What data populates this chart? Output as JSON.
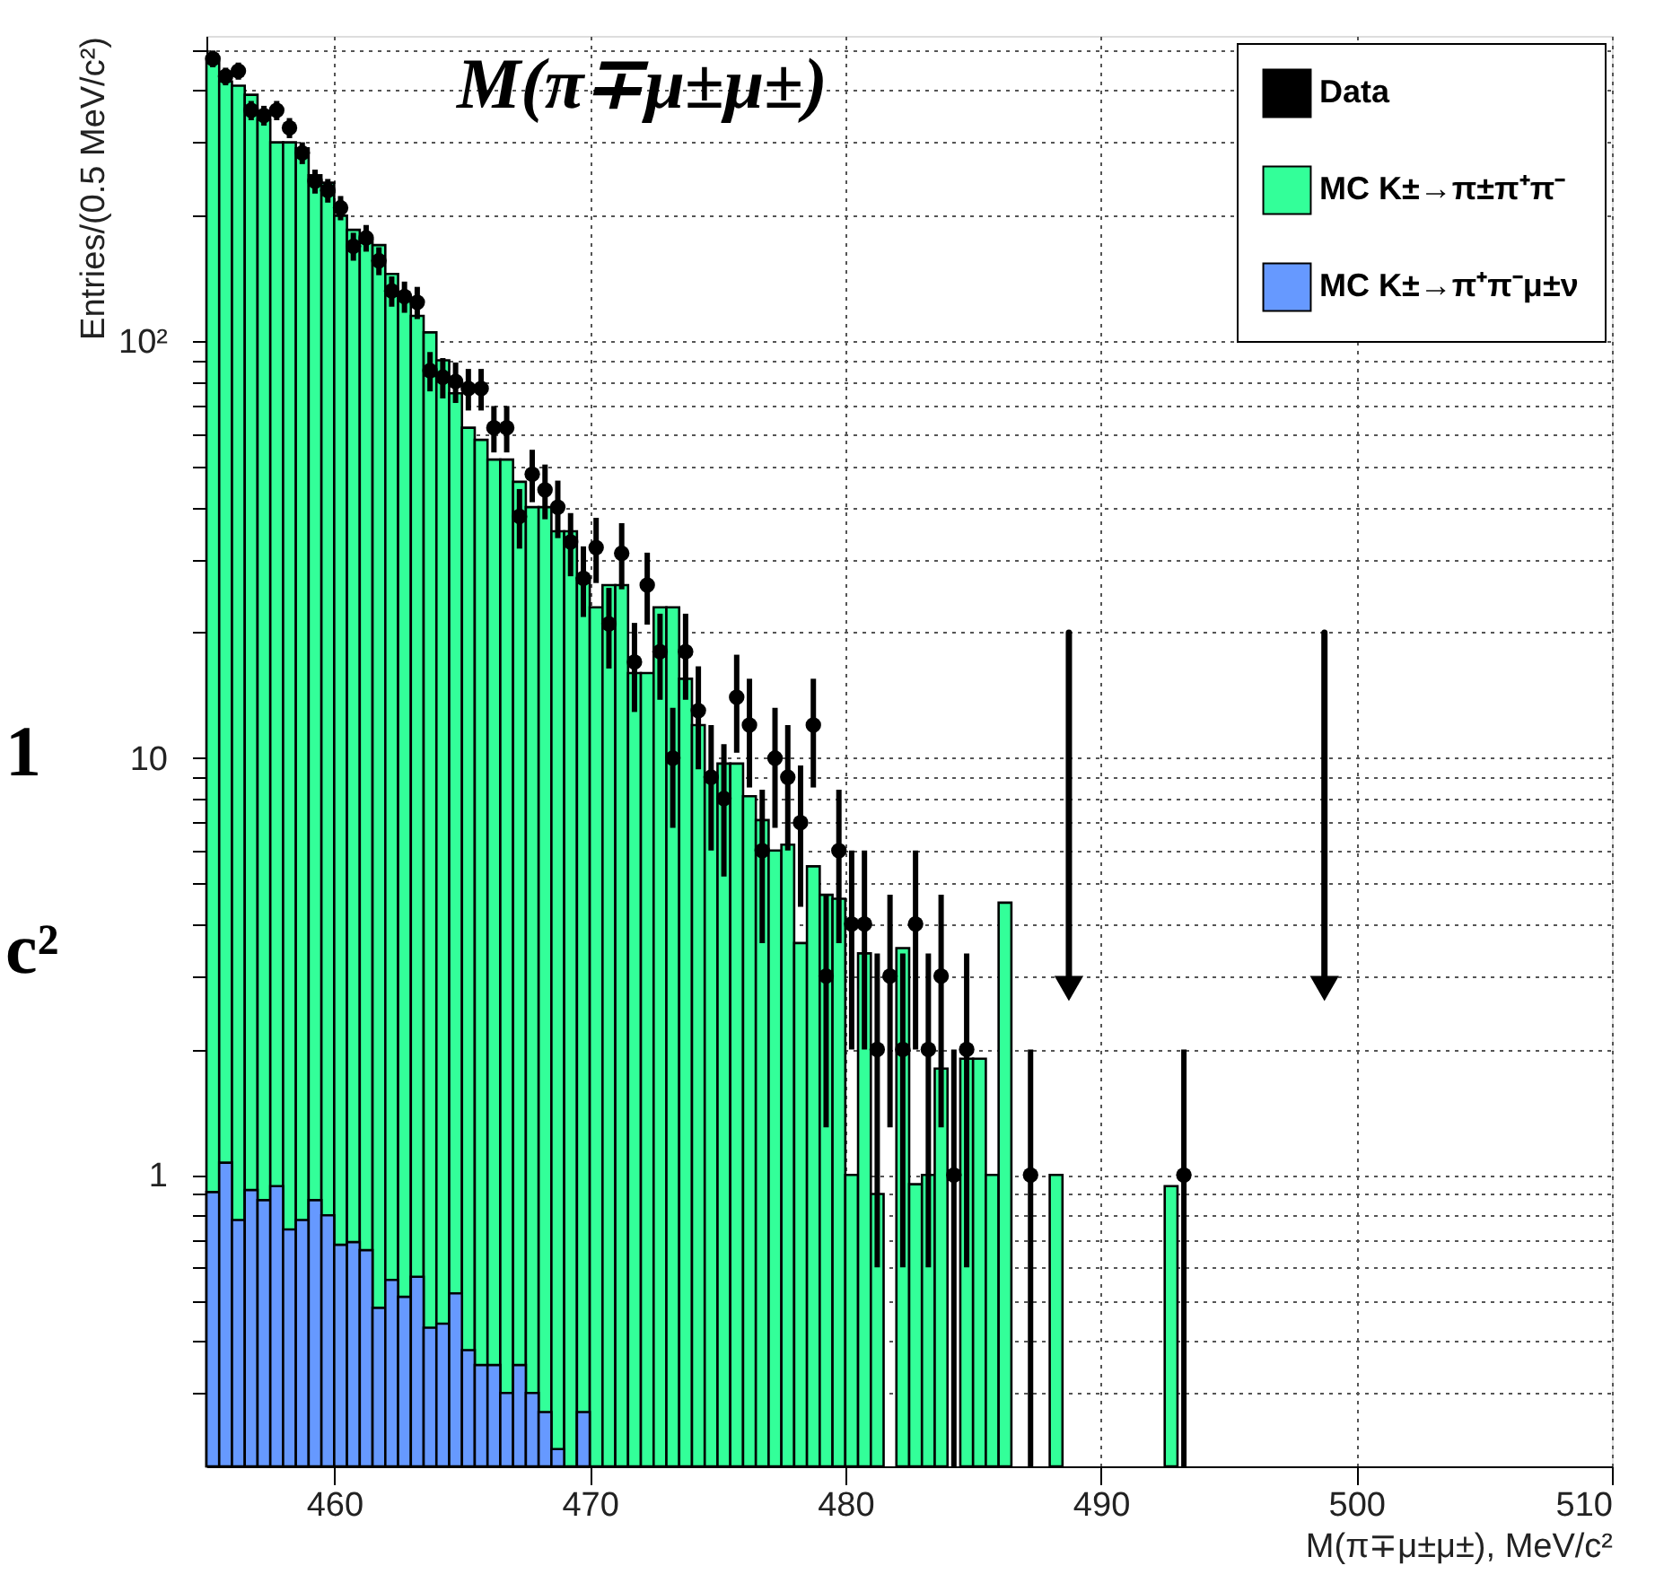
{
  "chart_data": {
    "type": "histogram",
    "title": "M(π∓μ±μ±)",
    "xlabel": "M(π∓μ±μ±), MeV/c²",
    "ylabel": "Entries/(0.5 MeV/c²)",
    "annotations": [
      "1",
      "c²"
    ],
    "xlim": [
      455,
      510
    ],
    "xticks": [
      460,
      470,
      480,
      490,
      500,
      510
    ],
    "ylim": [
      0.2,
      540
    ],
    "log": "y",
    "yticks": [
      {
        "value": 0.3,
        "label": null
      },
      {
        "value": 0.4,
        "label": null
      },
      {
        "value": 0.5,
        "label": null
      },
      {
        "value": 0.6,
        "label": null
      },
      {
        "value": 0.7,
        "label": null
      },
      {
        "value": 0.8,
        "label": null
      },
      {
        "value": 0.9,
        "label": null
      },
      1,
      {
        "value": 2,
        "label": null
      },
      {
        "value": 3,
        "label": null
      },
      {
        "value": 4,
        "label": null
      },
      {
        "value": 5,
        "label": null
      },
      {
        "value": 6,
        "label": null
      },
      {
        "value": 7,
        "label": null
      },
      {
        "value": 8,
        "label": null
      },
      {
        "value": 9,
        "label": null
      },
      10,
      {
        "value": 20,
        "label": null
      },
      {
        "value": 30,
        "label": null
      },
      {
        "value": 40,
        "label": null
      },
      {
        "value": 50,
        "label": null
      },
      {
        "value": 60,
        "label": null
      },
      {
        "value": 70,
        "label": null
      },
      {
        "value": 80,
        "label": null
      },
      {
        "value": 90,
        "label": null
      },
      {
        "value": 100,
        "label": "10²"
      },
      {
        "value": 200,
        "label": null
      },
      {
        "value": 300,
        "label": null
      },
      {
        "value": 400,
        "label": null
      },
      {
        "value": 500,
        "label": null
      }
    ],
    "grid": true,
    "legend": "top right",
    "bins": [
      455,
      455.5,
      456,
      456.5,
      457,
      457.5,
      458,
      458.5,
      459,
      459.5,
      460,
      460.5,
      461,
      461.5,
      462,
      462.5,
      463,
      463.5,
      464,
      464.5,
      465,
      465.5,
      466,
      466.5,
      467,
      467.5,
      468,
      468.5,
      469,
      469.5,
      470,
      470.5,
      471,
      471.5,
      472,
      472.5,
      473,
      473.5,
      474,
      474.5,
      475,
      475.5,
      476,
      476.5,
      477,
      477.5,
      478,
      478.5,
      479,
      479.5,
      480,
      480.5,
      481,
      481.5,
      482,
      482.5,
      483,
      483.5,
      484,
      484.5,
      485,
      485.5,
      486,
      486.5,
      487,
      487.5,
      488,
      488.5,
      489,
      489.5,
      490,
      490.5,
      491,
      491.5,
      492,
      492.5,
      493,
      493.5,
      494,
      494.5,
      495,
      495.5,
      496,
      496.5,
      497,
      497.5,
      498,
      498.5,
      499,
      499.5,
      500,
      500.5,
      501,
      501.5,
      502,
      502.5,
      503,
      503.5,
      504,
      504.5,
      505,
      505.5,
      506,
      506.5,
      507,
      507.5,
      508,
      508.5,
      509,
      509.5,
      510
    ],
    "series": [
      {
        "name": "Data",
        "type": "scatter",
        "color": "#000000",
        "marker": "circle",
        "x": [
          455.25,
          455.75,
          456.25,
          456.75,
          457.25,
          457.75,
          458.25,
          458.75,
          459.25,
          459.75,
          460.25,
          460.75,
          461.25,
          461.75,
          462.25,
          462.75,
          463.25,
          463.75,
          464.25,
          464.75,
          465.25,
          465.75,
          466.25,
          466.75,
          467.25,
          467.75,
          468.25,
          468.75,
          469.25,
          469.75,
          470.25,
          470.75,
          471.25,
          471.75,
          472.25,
          472.75,
          473.25,
          473.75,
          474.25,
          474.75,
          475.25,
          475.75,
          476.25,
          476.75,
          477.25,
          477.75,
          478.25,
          478.75,
          479.25,
          479.75,
          480.25,
          480.75,
          481.25,
          481.75,
          482.25,
          482.75,
          483.25,
          483.75,
          484.25,
          484.75,
          487.25,
          493.25
        ],
        "values": [
          476,
          432,
          445,
          358,
          348,
          358,
          325,
          283,
          242,
          230,
          209,
          169,
          177,
          156,
          132,
          128,
          124,
          85,
          82,
          80,
          77,
          77,
          62,
          62,
          38,
          48,
          44,
          40,
          33,
          27,
          32,
          21,
          31,
          17,
          26,
          18,
          10,
          18,
          13,
          9,
          8,
          14,
          12,
          6,
          10,
          9,
          7,
          12,
          3,
          6,
          4,
          4,
          2,
          3,
          2,
          4,
          2,
          3,
          1,
          2,
          1,
          1
        ],
        "errors": [
          22,
          21,
          21,
          19,
          19,
          19,
          18,
          17,
          16,
          15,
          14,
          13,
          13,
          12,
          11,
          11,
          11,
          9.2,
          9.1,
          8.9,
          8.8,
          8.8,
          7.9,
          7.9,
          6.2,
          6.9,
          6.6,
          6.3,
          5.7,
          5.2,
          5.7,
          4.6,
          5.6,
          4.1,
          5.1,
          4.2,
          3.2,
          4.2,
          3.6,
          3,
          2.8,
          3.7,
          3.5,
          2.4,
          3.2,
          3,
          2.6,
          3.5,
          1.7,
          2.4,
          2,
          2,
          1.4,
          1.7,
          1.4,
          2,
          1.4,
          1.7,
          [
            0.2,
            2
          ],
          1.4,
          [
            0.2,
            2
          ],
          [
            0.2,
            2
          ]
        ]
      },
      {
        "name": "MC K±→π±π⁺π⁻",
        "color": "#33ff99",
        "values": [
          480,
          420,
          410,
          390,
          340,
          300,
          300,
          290,
          250,
          240,
          200,
          185,
          175,
          170,
          145,
          125,
          115,
          105,
          90,
          75,
          62,
          58,
          52,
          52,
          46,
          40,
          40,
          35,
          35,
          27,
          23,
          26,
          26,
          16,
          16,
          23,
          23,
          15.5,
          12,
          9,
          9.7,
          9.7,
          8.1,
          7.1,
          6,
          6.2,
          3.6,
          5.5,
          4.7,
          4.6,
          1,
          3.4,
          0.9,
          null,
          3.5,
          0.95,
          1,
          1.8,
          null,
          1.9,
          1.9,
          1,
          4.5,
          null,
          null,
          null,
          1,
          null,
          null,
          null,
          null,
          null,
          null,
          null,
          null,
          0.94,
          null,
          null,
          null,
          null,
          null,
          null,
          null,
          null,
          null,
          null,
          null,
          null,
          null,
          null,
          null,
          null,
          null,
          null,
          null,
          null,
          null,
          null,
          null,
          null,
          null,
          null,
          null,
          null,
          null,
          null,
          null,
          null,
          null,
          null
        ]
      },
      {
        "name": "MC K±→π⁺π⁻μ±ν",
        "color": "#6699ff",
        "values": [
          0.91,
          1.07,
          0.78,
          0.92,
          0.87,
          0.94,
          0.74,
          0.78,
          0.87,
          0.8,
          0.68,
          0.69,
          0.66,
          0.48,
          0.56,
          0.51,
          0.57,
          0.43,
          0.44,
          0.52,
          0.38,
          0.35,
          0.35,
          0.3,
          0.35,
          0.3,
          0.27,
          0.22,
          null,
          0.27,
          null,
          null,
          null,
          null,
          null,
          null,
          null,
          null,
          null,
          null,
          null,
          null,
          null,
          null,
          null,
          null,
          null,
          null,
          null,
          null,
          null,
          null,
          null,
          null,
          null,
          null,
          null,
          null,
          null,
          null,
          null,
          null,
          null,
          null,
          null,
          null,
          null,
          null,
          null,
          null,
          null,
          null,
          null,
          null,
          null,
          null,
          null,
          null,
          null,
          null,
          null,
          null,
          null,
          null,
          null,
          null,
          null,
          null,
          null,
          null,
          null,
          null,
          null,
          null,
          null,
          null,
          null,
          null,
          null,
          null,
          null,
          null,
          null,
          null,
          null,
          null,
          null,
          null,
          null,
          null
        ]
      },
      {
        "type": "line",
        "color": "#000000",
        "marker": "triangle",
        "x": [
          488.75,
          488.75
        ],
        "values": [
          20,
          2.8
        ]
      },
      {
        "type": "line",
        "color": "#000000",
        "marker": "triangle",
        "x": [
          498.75,
          498.75
        ],
        "values": [
          20,
          2.8
        ]
      }
    ]
  }
}
